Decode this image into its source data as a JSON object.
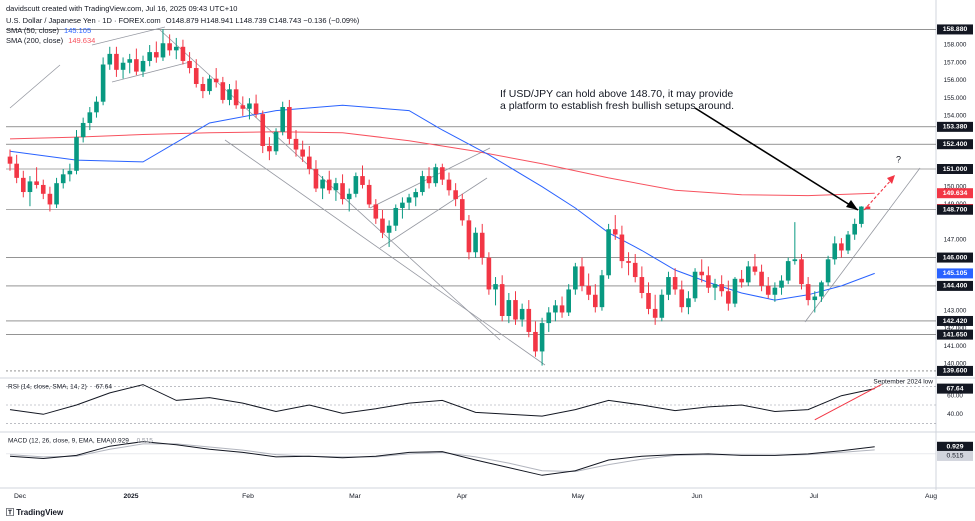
{
  "header": {
    "creator": "davidscutt created with TradingView.com, Jul 16, 2025 09:43 UTC+10",
    "symbol": "U.S. Dollar / Japanese Yen · 1D · FOREX.com",
    "ohlc": "O148.879 H148.941 L148.739 C148.743 −0.136 (−0.09%)",
    "sma50_label": "SMA (50, close)",
    "sma50_value": "145.105",
    "sma200_label": "SMA (200, close)",
    "sma200_value": "149.634"
  },
  "annotation": {
    "line1": "If USD/JPY can hold above 148.70, it may provide",
    "line2": "a platform to establish fresh bullish setups around.",
    "question": "?"
  },
  "footer": {
    "logo": "TradingView"
  },
  "colors": {
    "up": "#089981",
    "down": "#f23645",
    "sma50": "#2962ff",
    "sma200": "#f7525f",
    "price_tag_dark": "#131722",
    "price_tag_red": "#f23645",
    "price_tag_blue": "#2962ff",
    "grid": "#f0f3fa",
    "trend": "#9598a1",
    "rsi_line": "#131722",
    "rsi_trend": "#f23645",
    "macd": "#131722",
    "signal": "#b2b5be"
  },
  "chart_data": [
    {
      "type": "candlestick",
      "yaxis_ticks": [
        "158.880",
        "158.000",
        "157.000",
        "156.000",
        "155.000",
        "154.000",
        "153.380",
        "152.400",
        "151.000",
        "150.000",
        "149.634",
        "149.000",
        "148.743",
        "148.700",
        "147.000",
        "146.000",
        "145.105",
        "144.400",
        "143.000",
        "142.420",
        "142.000",
        "141.650",
        "141.000",
        "140.000",
        "139.600"
      ],
      "ylim": [
        139.2,
        159.3
      ],
      "xaxis_labels": [
        "Dec",
        "2025",
        "Feb",
        "Mar",
        "Apr",
        "May",
        "Jun",
        "Jul",
        "Aug"
      ],
      "horizontal_levels": [
        158.88,
        153.38,
        152.4,
        151.0,
        148.7,
        146.0,
        144.4,
        142.42,
        141.65,
        139.6
      ],
      "level_labels": [
        "158.880",
        "153.380",
        "152.400",
        "151.000",
        "148.700",
        "146.000",
        "144.400",
        "142.420",
        "141.650",
        "139.600"
      ],
      "highlighted_tags": [
        {
          "label": "149.634",
          "value": 149.634,
          "style": "red"
        },
        {
          "label": "148.743",
          "value": 148.743,
          "style": "red"
        },
        {
          "label": "145.105",
          "value": 145.105,
          "style": "blue"
        }
      ],
      "candles": [
        [
          151.7,
          152.1,
          150.9,
          151.3
        ],
        [
          151.3,
          151.8,
          150.2,
          150.5
        ],
        [
          150.5,
          150.9,
          149.4,
          149.7
        ],
        [
          149.7,
          150.6,
          148.9,
          150.3
        ],
        [
          150.3,
          151.1,
          149.9,
          150.1
        ],
        [
          150.1,
          150.4,
          149.3,
          149.6
        ],
        [
          149.6,
          150.0,
          148.6,
          149.0
        ],
        [
          149.0,
          150.5,
          148.8,
          150.2
        ],
        [
          150.2,
          151.0,
          149.9,
          150.7
        ],
        [
          150.7,
          151.3,
          150.3,
          150.9
        ],
        [
          150.9,
          153.2,
          150.7,
          152.8
        ],
        [
          152.8,
          153.9,
          152.5,
          153.6
        ],
        [
          153.6,
          154.5,
          153.2,
          154.2
        ],
        [
          154.2,
          155.1,
          153.9,
          154.8
        ],
        [
          154.8,
          157.3,
          154.6,
          156.9
        ],
        [
          156.9,
          157.9,
          156.6,
          157.5
        ],
        [
          157.5,
          157.9,
          156.2,
          156.6
        ],
        [
          156.6,
          157.3,
          156.1,
          157.0
        ],
        [
          157.0,
          157.5,
          156.4,
          157.2
        ],
        [
          157.2,
          157.8,
          156.3,
          156.5
        ],
        [
          156.5,
          157.4,
          156.2,
          157.1
        ],
        [
          157.1,
          158.0,
          156.8,
          157.6
        ],
        [
          157.6,
          158.2,
          157.0,
          157.3
        ],
        [
          157.3,
          158.9,
          157.1,
          158.1
        ],
        [
          158.1,
          158.6,
          157.4,
          157.7
        ],
        [
          157.7,
          158.4,
          157.2,
          157.9
        ],
        [
          157.9,
          158.3,
          156.9,
          157.1
        ],
        [
          157.1,
          157.6,
          156.4,
          156.7
        ],
        [
          156.7,
          157.2,
          155.6,
          155.8
        ],
        [
          155.8,
          156.2,
          155.0,
          155.4
        ],
        [
          155.4,
          156.3,
          155.2,
          156.1
        ],
        [
          156.1,
          156.7,
          155.6,
          155.9
        ],
        [
          155.9,
          156.2,
          154.7,
          154.9
        ],
        [
          154.9,
          155.8,
          154.6,
          155.5
        ],
        [
          155.5,
          156.0,
          154.4,
          154.6
        ],
        [
          154.6,
          155.1,
          154.0,
          154.4
        ],
        [
          154.4,
          155.0,
          153.8,
          154.7
        ],
        [
          154.7,
          155.2,
          153.9,
          154.1
        ],
        [
          154.1,
          154.3,
          151.9,
          152.3
        ],
        [
          152.3,
          152.8,
          151.5,
          152.0
        ],
        [
          152.0,
          153.3,
          151.8,
          153.1
        ],
        [
          153.1,
          154.8,
          152.9,
          154.5
        ],
        [
          154.5,
          154.9,
          152.4,
          152.7
        ],
        [
          152.7,
          153.2,
          151.7,
          152.1
        ],
        [
          152.1,
          152.6,
          151.4,
          151.7
        ],
        [
          151.7,
          152.3,
          150.7,
          151.0
        ],
        [
          151.0,
          151.5,
          149.7,
          149.9
        ],
        [
          149.9,
          150.6,
          149.3,
          150.4
        ],
        [
          150.4,
          150.9,
          149.6,
          149.8
        ],
        [
          149.8,
          150.5,
          149.2,
          150.2
        ],
        [
          150.2,
          150.7,
          149.0,
          149.3
        ],
        [
          149.3,
          149.9,
          148.6,
          149.6
        ],
        [
          149.6,
          150.8,
          149.4,
          150.6
        ],
        [
          150.6,
          151.2,
          149.9,
          150.1
        ],
        [
          150.1,
          150.4,
          148.8,
          149.0
        ],
        [
          149.0,
          149.3,
          147.9,
          148.2
        ],
        [
          148.2,
          148.7,
          147.1,
          147.4
        ],
        [
          147.4,
          148.1,
          146.6,
          147.8
        ],
        [
          147.8,
          149.0,
          147.5,
          148.8
        ],
        [
          148.8,
          149.4,
          148.2,
          149.1
        ],
        [
          149.1,
          149.6,
          148.7,
          149.4
        ],
        [
          149.4,
          149.9,
          148.9,
          149.7
        ],
        [
          149.7,
          150.9,
          149.5,
          150.6
        ],
        [
          150.6,
          151.1,
          149.9,
          150.2
        ],
        [
          150.2,
          151.3,
          150.0,
          151.1
        ],
        [
          151.1,
          151.3,
          150.1,
          150.4
        ],
        [
          150.4,
          150.8,
          149.5,
          149.8
        ],
        [
          149.8,
          150.2,
          148.9,
          149.3
        ],
        [
          149.3,
          149.6,
          147.8,
          148.1
        ],
        [
          148.1,
          148.4,
          145.9,
          146.3
        ],
        [
          146.3,
          147.7,
          146.0,
          147.4
        ],
        [
          147.4,
          147.9,
          145.6,
          146.0
        ],
        [
          146.0,
          146.3,
          143.9,
          144.2
        ],
        [
          144.2,
          144.9,
          143.3,
          144.5
        ],
        [
          144.5,
          145.0,
          142.4,
          142.7
        ],
        [
          142.7,
          144.0,
          142.3,
          143.6
        ],
        [
          143.6,
          144.1,
          142.2,
          142.5
        ],
        [
          142.5,
          143.4,
          142.1,
          143.1
        ],
        [
          143.1,
          143.6,
          141.5,
          141.8
        ],
        [
          141.8,
          142.4,
          140.4,
          140.7
        ],
        [
          140.7,
          142.6,
          139.9,
          142.3
        ],
        [
          142.3,
          143.2,
          141.8,
          142.9
        ],
        [
          142.9,
          143.6,
          142.4,
          143.3
        ],
        [
          143.3,
          143.8,
          142.6,
          142.9
        ],
        [
          142.9,
          144.5,
          142.7,
          144.2
        ],
        [
          144.2,
          145.7,
          143.9,
          145.5
        ],
        [
          145.5,
          146.0,
          144.1,
          144.4
        ],
        [
          144.4,
          145.1,
          143.6,
          143.9
        ],
        [
          143.9,
          144.5,
          142.9,
          143.2
        ],
        [
          143.2,
          145.3,
          143.0,
          145.0
        ],
        [
          145.0,
          147.9,
          144.8,
          147.6
        ],
        [
          147.6,
          148.4,
          147.0,
          147.3
        ],
        [
          147.3,
          147.8,
          145.4,
          145.8
        ],
        [
          145.8,
          146.3,
          145.0,
          145.7
        ],
        [
          145.7,
          146.2,
          144.6,
          144.9
        ],
        [
          144.9,
          145.5,
          143.7,
          144.0
        ],
        [
          144.0,
          144.6,
          142.8,
          143.1
        ],
        [
          143.1,
          143.9,
          142.2,
          142.6
        ],
        [
          142.6,
          144.2,
          142.4,
          143.9
        ],
        [
          143.9,
          145.2,
          143.6,
          144.9
        ],
        [
          144.9,
          145.4,
          143.9,
          144.2
        ],
        [
          144.2,
          144.7,
          142.9,
          143.2
        ],
        [
          143.2,
          144.1,
          142.8,
          143.7
        ],
        [
          143.7,
          145.4,
          143.5,
          145.2
        ],
        [
          145.2,
          145.9,
          144.6,
          145.0
        ],
        [
          145.0,
          145.5,
          144.0,
          144.3
        ],
        [
          144.3,
          144.8,
          143.6,
          144.5
        ],
        [
          144.5,
          145.0,
          143.8,
          144.1
        ],
        [
          144.1,
          144.7,
          143.0,
          143.4
        ],
        [
          143.4,
          144.9,
          143.2,
          144.8
        ],
        [
          144.8,
          145.3,
          144.3,
          144.6
        ],
        [
          144.6,
          145.8,
          144.4,
          145.5
        ],
        [
          145.5,
          146.2,
          145.0,
          145.2
        ],
        [
          145.2,
          145.6,
          144.1,
          144.4
        ],
        [
          144.4,
          144.9,
          143.7,
          143.9
        ],
        [
          143.9,
          144.6,
          143.5,
          144.3
        ],
        [
          144.3,
          145.0,
          143.9,
          144.7
        ],
        [
          144.7,
          146.0,
          144.5,
          145.8
        ],
        [
          145.8,
          148.0,
          145.6,
          145.9
        ],
        [
          145.9,
          146.2,
          144.2,
          144.5
        ],
        [
          144.5,
          144.9,
          143.3,
          143.6
        ],
        [
          143.6,
          144.1,
          142.9,
          143.8
        ],
        [
          143.8,
          144.7,
          143.5,
          144.6
        ],
        [
          144.6,
          146.1,
          144.4,
          145.9
        ],
        [
          145.9,
          147.2,
          145.6,
          146.8
        ],
        [
          146.8,
          147.1,
          146.0,
          146.4
        ],
        [
          146.4,
          147.5,
          146.2,
          147.3
        ],
        [
          147.3,
          148.2,
          147.0,
          147.9
        ],
        [
          147.9,
          148.9,
          147.7,
          148.88
        ],
        [
          148.88,
          148.94,
          148.74,
          148.743
        ]
      ],
      "sma50": [
        [
          0,
          152.0
        ],
        [
          10,
          151.5
        ],
        [
          20,
          151.4
        ],
        [
          30,
          153.6
        ],
        [
          40,
          154.3
        ],
        [
          50,
          154.6
        ],
        [
          60,
          154.3
        ],
        [
          65,
          153.2
        ],
        [
          72,
          151.8
        ],
        [
          80,
          150.0
        ],
        [
          85,
          148.8
        ],
        [
          90,
          147.4
        ],
        [
          95,
          146.4
        ],
        [
          100,
          145.3
        ],
        [
          105,
          144.6
        ],
        [
          110,
          144.0
        ],
        [
          115,
          143.6
        ],
        [
          120,
          143.9
        ],
        [
          125,
          144.4
        ],
        [
          130,
          145.105
        ]
      ],
      "sma200": [
        [
          0,
          152.7
        ],
        [
          10,
          152.8
        ],
        [
          20,
          152.95
        ],
        [
          30,
          153.05
        ],
        [
          40,
          153.1
        ],
        [
          50,
          153.05
        ],
        [
          60,
          152.6
        ],
        [
          70,
          152.0
        ],
        [
          80,
          151.3
        ],
        [
          90,
          150.5
        ],
        [
          100,
          149.8
        ],
        [
          110,
          149.55
        ],
        [
          120,
          149.5
        ],
        [
          130,
          149.634
        ]
      ]
    },
    {
      "type": "line",
      "title": "RSI (14, close, SMA, 14, 2)",
      "value_label": "67.64",
      "yaxis_ticks": [
        "67.64",
        "60.00",
        "40.00"
      ],
      "ylim": [
        22,
        78
      ],
      "levels": [
        70,
        50,
        30
      ],
      "x": [
        0,
        5,
        10,
        15,
        20,
        25,
        30,
        35,
        40,
        45,
        50,
        55,
        60,
        65,
        70,
        75,
        80,
        85,
        90,
        95,
        100,
        105,
        110,
        115,
        120,
        125,
        130
      ],
      "values": [
        45,
        40,
        50,
        63,
        72,
        55,
        58,
        52,
        43,
        50,
        41,
        46,
        52,
        55,
        42,
        40,
        38,
        45,
        55,
        50,
        44,
        48,
        50,
        43,
        45,
        60,
        67.64
      ],
      "annotation": "September 2024 low"
    },
    {
      "type": "line",
      "title": "MACD (12, 26, close, 9, EMA, EMA)",
      "macd_label": "0.929",
      "signal_label": "0.515",
      "yaxis_ticks": [
        "0.929",
        "0.515"
      ],
      "ylim": [
        -4.2,
        2.6
      ],
      "x": [
        0,
        5,
        10,
        15,
        20,
        25,
        30,
        35,
        40,
        45,
        50,
        55,
        60,
        65,
        70,
        75,
        80,
        85,
        90,
        95,
        100,
        105,
        110,
        115,
        120,
        125,
        130
      ],
      "macd": [
        -0.3,
        -0.6,
        -0.2,
        1.0,
        1.6,
        1.2,
        0.6,
        0.2,
        -0.4,
        -0.3,
        -0.5,
        -0.3,
        0.2,
        0.3,
        -0.8,
        -1.8,
        -2.8,
        -2.2,
        -0.8,
        -0.3,
        -0.1,
        0.0,
        -0.2,
        -0.2,
        0.0,
        0.4,
        0.929
      ],
      "signal": [
        -0.1,
        -0.4,
        -0.3,
        0.6,
        1.3,
        1.3,
        0.9,
        0.5,
        -0.1,
        -0.3,
        -0.4,
        -0.4,
        0.0,
        0.2,
        -0.4,
        -1.2,
        -2.2,
        -2.3,
        -1.4,
        -0.7,
        -0.2,
        -0.1,
        -0.15,
        -0.2,
        -0.1,
        0.2,
        0.515
      ]
    }
  ]
}
